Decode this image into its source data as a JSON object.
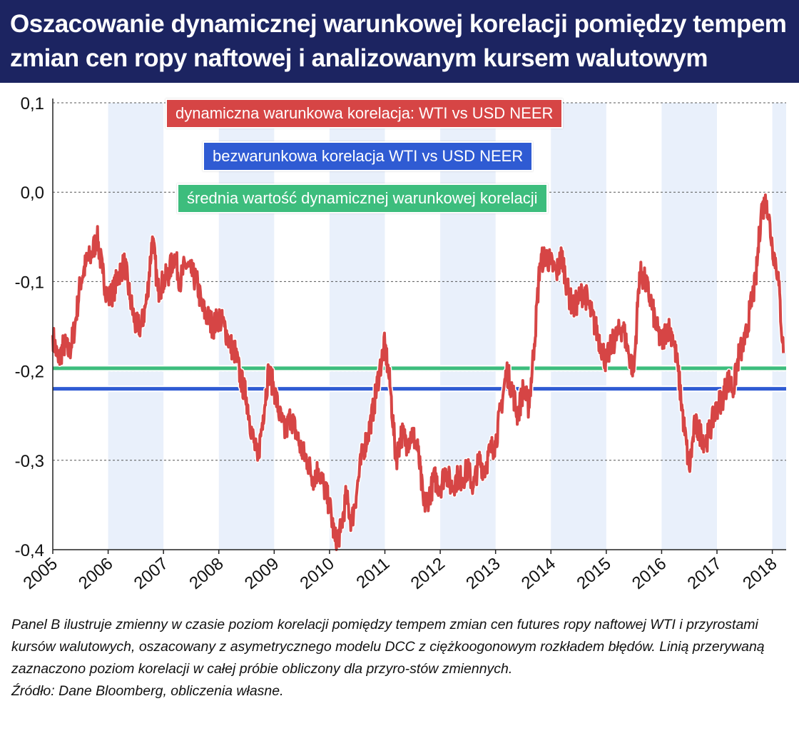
{
  "title": "Oszacowanie dynamicznej warunkowej korelacji pomiędzy tempem zmian cen ropy naftowej i analizowanym kursem walutowym",
  "colors": {
    "title_bg": "#1c2461",
    "red_series": "#d64545",
    "blue_series": "#2f5bd3",
    "green_series": "#3dbd7d",
    "stripe": "#e9f0fb"
  },
  "chart_data": {
    "type": "line",
    "x_label": "",
    "y_label": "",
    "xlim": [
      2005.0,
      2018.25
    ],
    "ylim": [
      -0.4,
      0.1
    ],
    "y_ticks": [
      0.1,
      0.0,
      -0.1,
      -0.2,
      -0.3,
      -0.4
    ],
    "y_tick_labels": [
      "0,1",
      "0,0",
      "-0,1",
      "-0,2",
      "-0,3",
      "-0,4"
    ],
    "x_ticks": [
      2005,
      2006,
      2007,
      2008,
      2009,
      2010,
      2011,
      2012,
      2013,
      2014,
      2015,
      2016,
      2017,
      2018
    ],
    "x_tick_labels": [
      "2005",
      "2006",
      "2007",
      "2008",
      "2009",
      "2010",
      "2011",
      "2012",
      "2013",
      "2014",
      "2015",
      "2016",
      "2017",
      "2018"
    ],
    "grid": "horizontal dashed",
    "shaded_years": [
      2006,
      2008,
      2010,
      2012,
      2014,
      2016,
      2018
    ],
    "series": [
      {
        "name": "dynamiczna warunkowa korelacja: WTI vs USD NEER",
        "kind": "line",
        "x": [
          2005.0,
          2005.1,
          2005.2,
          2005.3,
          2005.4,
          2005.5,
          2005.6,
          2005.7,
          2005.8,
          2005.9,
          2006.0,
          2006.1,
          2006.2,
          2006.3,
          2006.4,
          2006.5,
          2006.6,
          2006.7,
          2006.8,
          2006.9,
          2007.0,
          2007.1,
          2007.2,
          2007.3,
          2007.4,
          2007.5,
          2007.6,
          2007.7,
          2007.8,
          2007.9,
          2008.0,
          2008.1,
          2008.2,
          2008.3,
          2008.4,
          2008.5,
          2008.6,
          2008.7,
          2008.8,
          2008.9,
          2009.0,
          2009.1,
          2009.2,
          2009.3,
          2009.4,
          2009.5,
          2009.6,
          2009.7,
          2009.8,
          2009.9,
          2010.0,
          2010.1,
          2010.2,
          2010.3,
          2010.4,
          2010.5,
          2010.6,
          2010.7,
          2010.8,
          2010.9,
          2011.0,
          2011.1,
          2011.2,
          2011.3,
          2011.4,
          2011.5,
          2011.6,
          2011.7,
          2011.8,
          2011.9,
          2012.0,
          2012.1,
          2012.2,
          2012.3,
          2012.4,
          2012.5,
          2012.6,
          2012.7,
          2012.8,
          2012.9,
          2013.0,
          2013.1,
          2013.2,
          2013.3,
          2013.4,
          2013.5,
          2013.6,
          2013.7,
          2013.8,
          2013.9,
          2014.0,
          2014.1,
          2014.2,
          2014.3,
          2014.4,
          2014.5,
          2014.6,
          2014.7,
          2014.8,
          2014.9,
          2015.0,
          2015.1,
          2015.2,
          2015.3,
          2015.4,
          2015.5,
          2015.6,
          2015.7,
          2015.8,
          2015.9,
          2016.0,
          2016.1,
          2016.2,
          2016.3,
          2016.4,
          2016.5,
          2016.6,
          2016.7,
          2016.8,
          2016.9,
          2017.0,
          2017.1,
          2017.2,
          2017.3,
          2017.4,
          2017.5,
          2017.6,
          2017.7,
          2017.8,
          2017.9,
          2018.0,
          2018.1,
          2018.2
        ],
        "y": [
          -0.16,
          -0.19,
          -0.17,
          -0.18,
          -0.15,
          -0.1,
          -0.08,
          -0.07,
          -0.05,
          -0.09,
          -0.12,
          -0.11,
          -0.09,
          -0.08,
          -0.12,
          -0.15,
          -0.15,
          -0.12,
          -0.05,
          -0.11,
          -0.1,
          -0.09,
          -0.07,
          -0.1,
          -0.08,
          -0.09,
          -0.1,
          -0.13,
          -0.14,
          -0.15,
          -0.14,
          -0.15,
          -0.17,
          -0.18,
          -0.21,
          -0.23,
          -0.27,
          -0.3,
          -0.25,
          -0.2,
          -0.22,
          -0.25,
          -0.27,
          -0.25,
          -0.27,
          -0.29,
          -0.3,
          -0.32,
          -0.31,
          -0.33,
          -0.35,
          -0.39,
          -0.38,
          -0.34,
          -0.37,
          -0.33,
          -0.29,
          -0.27,
          -0.24,
          -0.2,
          -0.17,
          -0.22,
          -0.3,
          -0.27,
          -0.28,
          -0.27,
          -0.29,
          -0.35,
          -0.34,
          -0.32,
          -0.33,
          -0.31,
          -0.33,
          -0.32,
          -0.32,
          -0.31,
          -0.33,
          -0.3,
          -0.31,
          -0.29,
          -0.28,
          -0.24,
          -0.2,
          -0.22,
          -0.25,
          -0.22,
          -0.24,
          -0.17,
          -0.08,
          -0.07,
          -0.08,
          -0.09,
          -0.07,
          -0.11,
          -0.13,
          -0.12,
          -0.11,
          -0.13,
          -0.15,
          -0.17,
          -0.19,
          -0.17,
          -0.16,
          -0.15,
          -0.18,
          -0.2,
          -0.09,
          -0.1,
          -0.12,
          -0.15,
          -0.17,
          -0.15,
          -0.16,
          -0.2,
          -0.26,
          -0.31,
          -0.26,
          -0.27,
          -0.28,
          -0.26,
          -0.24,
          -0.23,
          -0.21,
          -0.22,
          -0.18,
          -0.17,
          -0.13,
          -0.1,
          -0.02,
          -0.01,
          -0.06,
          -0.09,
          -0.18
        ]
      },
      {
        "name": "bezwarunkowa korelacja WTI vs USD NEER",
        "kind": "hline",
        "value": -0.22
      },
      {
        "name": "średnia wartość dynamicznej warunkowej korelacji",
        "kind": "hline",
        "value": -0.197
      }
    ],
    "legend": [
      "dynamiczna warunkowa korelacja: WTI vs USD NEER",
      "bezwarunkowa korelacja WTI vs USD NEER",
      "średnia wartość dynamicznej warunkowej korelacji"
    ],
    "legend_position": "top-center"
  },
  "caption": {
    "text": "Panel B ilustruje zmienny w czasie poziom korelacji pomiędzy tempem zmian cen futures ropy naftowej WTI i przyrostami kursów walutowych, oszacowany z asymetrycznego modelu DCC z ciężkoogonowym rozkładem błędów. Linią przerywaną zaznaczono poziom korelacji w całej próbie obliczony dla przyro-stów zmiennych.",
    "source": "Źródło: Dane Bloomberg, obliczenia własne."
  }
}
